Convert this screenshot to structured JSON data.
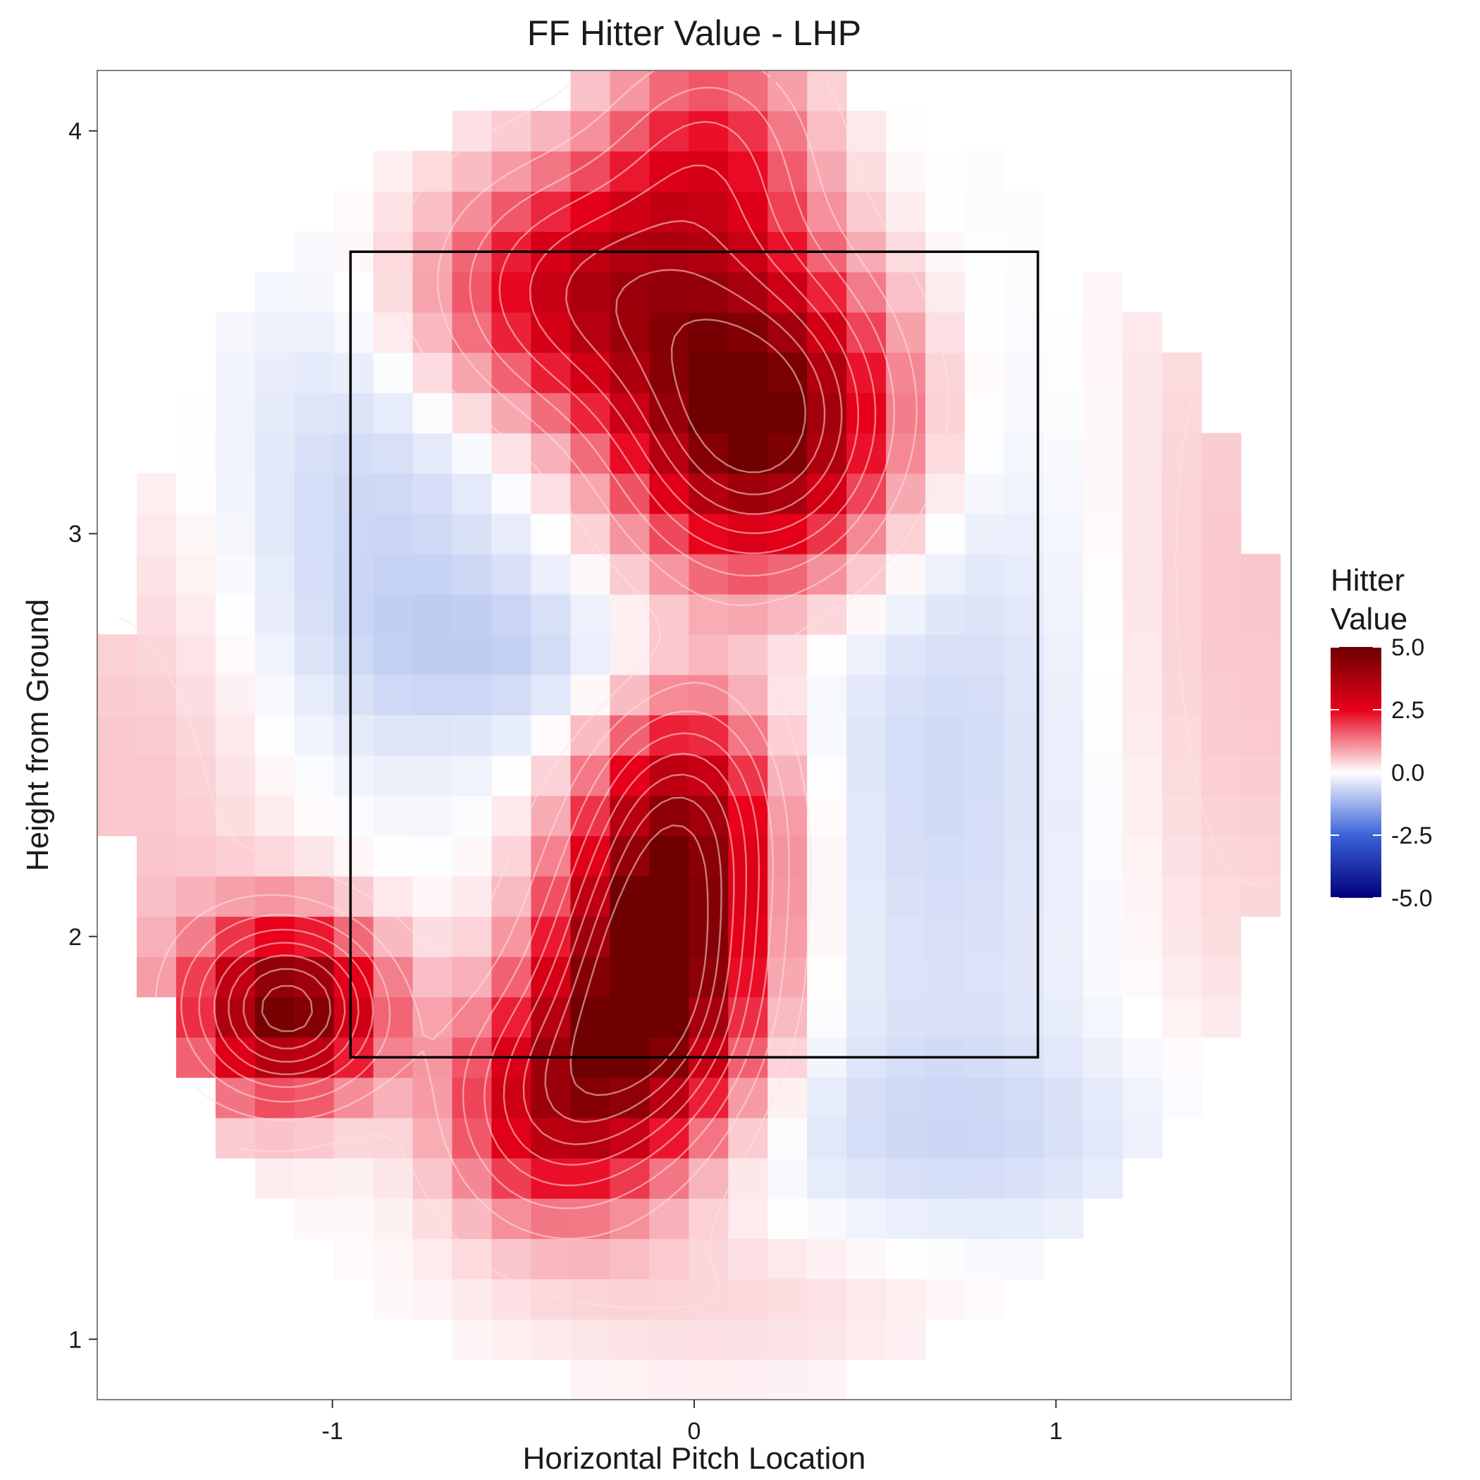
{
  "chart_data": {
    "type": "heatmap",
    "title": "FF Hitter Value - LHP",
    "xlabel": "Horizontal Pitch Location",
    "ylabel": "Height from Ground",
    "xlim": [
      -1.65,
      1.65
    ],
    "ylim": [
      0.85,
      4.15
    ],
    "x_ticks": [
      -1,
      0,
      1
    ],
    "x_tick_labels": [
      "-1",
      "0",
      "1"
    ],
    "y_ticks": [
      1,
      2,
      3,
      4
    ],
    "y_tick_labels": [
      "1",
      "2",
      "3",
      "4"
    ],
    "grid": false,
    "legend": {
      "title_line1": "Hitter",
      "title_line2": "Value",
      "placement": "right",
      "range": [
        -5,
        5
      ],
      "ticks": [
        5,
        2.5,
        0,
        -2.5,
        -5
      ],
      "tick_labels": [
        "5.0",
        "2.5",
        "0.0",
        "-2.5",
        "-5.0"
      ],
      "colors": {
        "low": "#00007a",
        "mid_low": "#3a63d8",
        "mid": "#ffffff",
        "mid_high": "#e8001a",
        "high": "#6e0000"
      }
    },
    "strike_zone": {
      "x": [
        -0.95,
        0.95
      ],
      "y": [
        1.7,
        3.7
      ]
    },
    "cell_width": 0.109,
    "cell_height": 0.1,
    "hotspots": [
      {
        "x": 0.18,
        "y": 3.28,
        "value": 5.2,
        "sx": 0.26,
        "sy": 0.26
      },
      {
        "x": -0.3,
        "y": 3.6,
        "value": 3.2,
        "sx": 0.3,
        "sy": 0.22
      },
      {
        "x": 0.05,
        "y": 3.95,
        "value": 2.0,
        "sx": 0.2,
        "sy": 0.2
      },
      {
        "x": -0.12,
        "y": 1.88,
        "value": 5.2,
        "sx": 0.2,
        "sy": 0.26
      },
      {
        "x": -0.02,
        "y": 2.3,
        "value": 3.2,
        "sx": 0.18,
        "sy": 0.22
      },
      {
        "x": -0.4,
        "y": 1.58,
        "value": 3.0,
        "sx": 0.2,
        "sy": 0.2
      },
      {
        "x": -1.12,
        "y": 1.82,
        "value": 4.8,
        "sx": 0.18,
        "sy": 0.15
      },
      {
        "x": -1.52,
        "y": 2.4,
        "value": 0.6,
        "sx": 0.3,
        "sy": 0.65
      },
      {
        "x": 1.5,
        "y": 2.8,
        "value": 0.6,
        "sx": 0.3,
        "sy": 0.85
      },
      {
        "x": 0.2,
        "y": 1.1,
        "value": 0.4,
        "sx": 0.5,
        "sy": 0.15
      }
    ],
    "coldspots": [
      {
        "x": 0.72,
        "y": 2.45,
        "value": -0.6,
        "sx": 0.35,
        "sy": 0.75
      },
      {
        "x": -0.9,
        "y": 3.05,
        "value": -0.7,
        "sx": 0.35,
        "sy": 0.45
      },
      {
        "x": 0.75,
        "y": 1.5,
        "value": -0.4,
        "sx": 0.55,
        "sy": 0.18
      },
      {
        "x": -0.45,
        "y": 2.7,
        "value": -0.5,
        "sx": 0.35,
        "sy": 0.15
      }
    ],
    "contour_levels": [
      0.4,
      1.0,
      1.6,
      2.2,
      2.8,
      3.4,
      4.0,
      4.6
    ]
  }
}
